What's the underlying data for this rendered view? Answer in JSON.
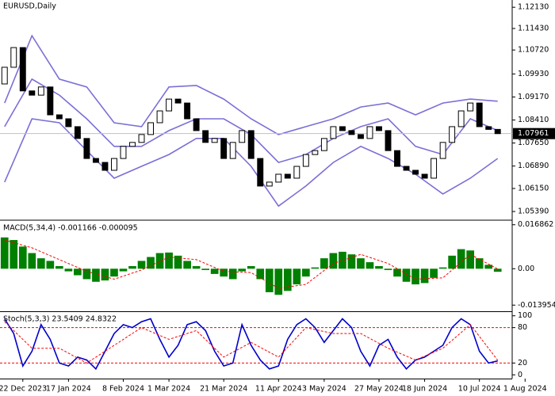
{
  "chart_data": [
    {
      "type": "candlestick",
      "title": "EURUSD,Daily",
      "open": [
        1.096,
        1.1015,
        1.108,
        1.0937,
        1.0923,
        1.095,
        1.0858,
        1.0845,
        1.0819,
        1.078,
        1.0714,
        1.0701,
        1.0675,
        1.0714,
        1.0754,
        1.0767,
        1.0793,
        1.0832,
        1.0871,
        1.091,
        1.0897,
        1.0845,
        1.0806,
        1.0767,
        1.078,
        1.0714,
        1.0767,
        1.0806,
        1.0714,
        1.0623,
        1.0636,
        1.0662,
        1.0649,
        1.0688,
        1.0727,
        1.074,
        1.078,
        1.0819,
        1.0806,
        1.0793,
        1.078,
        1.0819,
        1.0806,
        1.074,
        1.0688,
        1.0675,
        1.0662,
        1.0649,
        1.0714,
        1.0767,
        1.0819,
        1.0871,
        1.0897,
        1.0819,
        1.081
      ],
      "close": [
        1.1015,
        1.108,
        1.0937,
        1.0923,
        1.095,
        1.0858,
        1.0845,
        1.0819,
        1.078,
        1.0714,
        1.0701,
        1.0675,
        1.0714,
        1.0754,
        1.0767,
        1.0793,
        1.0832,
        1.0871,
        1.091,
        1.0897,
        1.0845,
        1.0806,
        1.0767,
        1.078,
        1.0714,
        1.0767,
        1.0806,
        1.0714,
        1.0623,
        1.0636,
        1.0662,
        1.0649,
        1.0688,
        1.0727,
        1.074,
        1.078,
        1.0819,
        1.0806,
        1.0793,
        1.078,
        1.0819,
        1.0806,
        1.074,
        1.0688,
        1.0675,
        1.0662,
        1.0649,
        1.0714,
        1.0767,
        1.0819,
        1.0871,
        1.0897,
        1.0819,
        1.081,
        1.0796
      ],
      "up_color": "#ffffff",
      "down_color": "#000000",
      "series": [
        {
          "color": "#7b6fd6",
          "x": [
            0,
            3,
            6,
            9,
            12,
            15,
            18,
            21,
            24,
            27,
            30,
            33,
            36,
            39,
            42,
            45,
            48,
            51,
            54
          ],
          "values": [
            1.0897,
            1.1119,
            1.0976,
            1.095,
            1.0832,
            1.0819,
            1.095,
            1.0955,
            1.091,
            1.0845,
            1.0793,
            1.0819,
            1.0845,
            1.0884,
            1.0897,
            1.0858,
            1.0897,
            1.091,
            1.0903
          ]
        },
        {
          "color": "#7b6fd6",
          "x": [
            0,
            3,
            6,
            9,
            12,
            15,
            18,
            21,
            24,
            27,
            30,
            33,
            36,
            39,
            42,
            45,
            48,
            51,
            54
          ],
          "values": [
            1.0819,
            1.0976,
            1.0923,
            1.0845,
            1.0754,
            1.0754,
            1.0806,
            1.0845,
            1.0845,
            1.0793,
            1.0701,
            1.0727,
            1.078,
            1.0819,
            1.0845,
            1.0754,
            1.0727,
            1.0845,
            1.0806
          ]
        },
        {
          "color": "#7b6fd6",
          "x": [
            0,
            3,
            6,
            9,
            12,
            15,
            18,
            21,
            24,
            27,
            30,
            33,
            36,
            39,
            42,
            45,
            48,
            51,
            54
          ],
          "values": [
            1.0636,
            1.0845,
            1.0832,
            1.074,
            1.0649,
            1.0688,
            1.0727,
            1.078,
            1.078,
            1.0688,
            1.0557,
            1.0623,
            1.0701,
            1.0754,
            1.0714,
            1.0662,
            1.0597,
            1.0649,
            1.0714
          ]
        }
      ],
      "current_price": 1.07961,
      "ylim": [
        1.0513,
        1.1237
      ],
      "yticks": [
        {
          "value": 1.1213,
          "label": "1.12130"
        },
        {
          "value": 1.1143,
          "label": "1.11430"
        },
        {
          "value": 1.1072,
          "label": "1.10720"
        },
        {
          "value": 1.0993,
          "label": "1.09930"
        },
        {
          "value": 1.0917,
          "label": "1.09170"
        },
        {
          "value": 1.0841,
          "label": "1.08410"
        },
        {
          "value": 1.0765,
          "label": "1.07650"
        },
        {
          "value": 1.0689,
          "label": "1.06890"
        },
        {
          "value": 1.0615,
          "label": "1.06150"
        },
        {
          "value": 1.0539,
          "label": "1.05390"
        }
      ]
    },
    {
      "type": "bar",
      "title": "MACD(5,34,4) -0.001166 -0.000095",
      "color": "#008000",
      "values": [
        0.012,
        0.011,
        0.0085,
        0.006,
        0.004,
        0.003,
        0.001,
        -0.001,
        -0.0025,
        -0.004,
        -0.005,
        -0.0045,
        -0.003,
        -0.001,
        0.001,
        0.003,
        0.0045,
        0.006,
        0.0062,
        0.005,
        0.003,
        0.001,
        -0.0005,
        -0.002,
        -0.003,
        -0.004,
        -0.001,
        0.001,
        -0.004,
        -0.009,
        -0.01,
        -0.0085,
        -0.006,
        -0.003,
        0.0005,
        0.004,
        0.006,
        0.0065,
        0.0055,
        0.004,
        0.0025,
        0.001,
        -0.0005,
        -0.003,
        -0.005,
        -0.006,
        -0.0055,
        -0.0035,
        0.0005,
        0.005,
        0.0075,
        0.007,
        0.004,
        0.0015,
        -0.001166
      ],
      "series": [
        {
          "color": "#ff0000",
          "dashed": true,
          "x": [
            0,
            3,
            6,
            9,
            12,
            15,
            18,
            21,
            24,
            27,
            30,
            33,
            36,
            39,
            42,
            45,
            48,
            51,
            54
          ],
          "values": [
            0.011,
            0.008,
            0.0035,
            -0.001,
            -0.004,
            -0.0005,
            0.0045,
            0.0035,
            -0.001,
            -0.0015,
            -0.0075,
            -0.006,
            0.002,
            0.0055,
            0.002,
            -0.004,
            -0.0035,
            0.0055,
            -9.5e-05
          ]
        }
      ],
      "ylim": [
        -0.016,
        0.018
      ],
      "yticks": [
        0.016862,
        {
          "value": 0,
          "label": "0.00"
        },
        -0.013954
      ]
    },
    {
      "type": "line",
      "title": "Stoch(5,3,3) 23.5409 24.8322",
      "series": [
        {
          "color": "#0000cd",
          "values": [
            95,
            70,
            15,
            40,
            85,
            60,
            20,
            15,
            30,
            25,
            10,
            40,
            70,
            85,
            80,
            90,
            95,
            60,
            30,
            50,
            85,
            90,
            75,
            40,
            15,
            20,
            85,
            50,
            25,
            10,
            15,
            60,
            85,
            95,
            80,
            55,
            75,
            95,
            80,
            40,
            15,
            50,
            60,
            30,
            10,
            25,
            30,
            40,
            50,
            80,
            95,
            85,
            40,
            20,
            23.5409
          ]
        },
        {
          "color": "#ff0000",
          "dashed": true,
          "x": [
            0,
            3,
            6,
            9,
            12,
            15,
            18,
            21,
            24,
            27,
            30,
            33,
            36,
            39,
            42,
            45,
            48,
            51,
            54
          ],
          "values": [
            90,
            45,
            45,
            20,
            50,
            80,
            60,
            75,
            30,
            55,
            30,
            80,
            70,
            70,
            45,
            25,
            45,
            85,
            24.8322
          ]
        }
      ],
      "levels": [
        80,
        20
      ],
      "level_color": "#ff0000",
      "ylim": [
        -5,
        105
      ],
      "yticks": [
        100,
        80,
        20,
        0
      ],
      "xlim": [
        -0.5,
        55.5
      ],
      "xticks": [
        {
          "value": 2,
          "label": "22 Dec 2023"
        },
        {
          "value": 7,
          "label": "17 Jan 2024"
        },
        {
          "value": 13,
          "label": "8 Feb 2024"
        },
        {
          "value": 18,
          "label": "1 Mar 2024"
        },
        {
          "value": 24,
          "label": "21 Mar 2024"
        },
        {
          "value": 30,
          "label": "11 Apr 2024"
        },
        {
          "value": 35,
          "label": "3 May 2024"
        },
        {
          "value": 41,
          "label": "27 May 2024"
        },
        {
          "value": 46,
          "label": "18 Jun 2024"
        },
        {
          "value": 52,
          "label": "10 Jul 2024"
        },
        {
          "value": 57,
          "label": "1 Aug 2024"
        }
      ]
    }
  ]
}
